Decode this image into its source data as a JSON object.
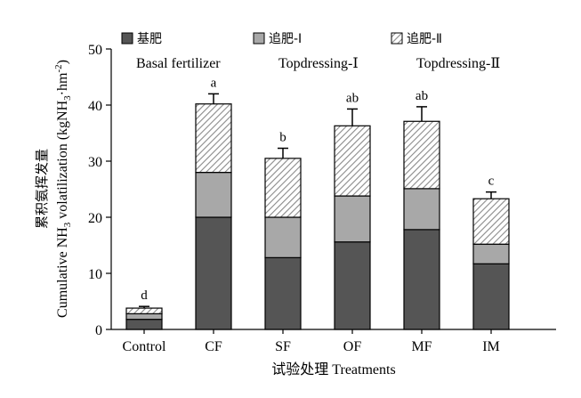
{
  "chart_data": {
    "type": "bar",
    "stacked": true,
    "categories": [
      "Control",
      "CF",
      "SF",
      "OF",
      "MF",
      "IM"
    ],
    "series": [
      {
        "name_cn": "基肥",
        "name": "Basal fertilizer",
        "color": "#555555",
        "pattern": "solid",
        "values": [
          1.8,
          20.0,
          12.8,
          15.6,
          17.8,
          11.7
        ]
      },
      {
        "name_cn": "追肥-Ⅰ",
        "name": "Topdressing-Ⅰ",
        "color": "#a8a8a8",
        "pattern": "solid",
        "values": [
          1.0,
          8.0,
          7.2,
          8.2,
          7.3,
          3.5
        ]
      },
      {
        "name_cn": "追肥-Ⅱ",
        "name": "Topdressing-Ⅱ",
        "color": "#888888",
        "pattern": "hatch",
        "values": [
          1.0,
          12.2,
          10.5,
          12.5,
          12.0,
          8.1
        ]
      }
    ],
    "errors": [
      0.3,
      1.8,
      1.8,
      3.0,
      2.6,
      1.2
    ],
    "significance": [
      "d",
      "a",
      "b",
      "ab",
      "ab",
      "c"
    ],
    "ylim": [
      0,
      50
    ],
    "yticks": [
      0,
      10,
      20,
      30,
      40,
      50
    ],
    "ylabel_cn": "累积氨挥发量",
    "ylabel_prefix": "Cumulative NH",
    "ylabel_sub": "3",
    "ylabel_suffix": " volatilization (kgNH",
    "ylabel_sub2": "3",
    "ylabel_unit": "·hm",
    "ylabel_sup": "-2",
    "ylabel_close": ")",
    "xlabel": "试验处理 Treatments",
    "grid": false,
    "legend_position": "top"
  }
}
